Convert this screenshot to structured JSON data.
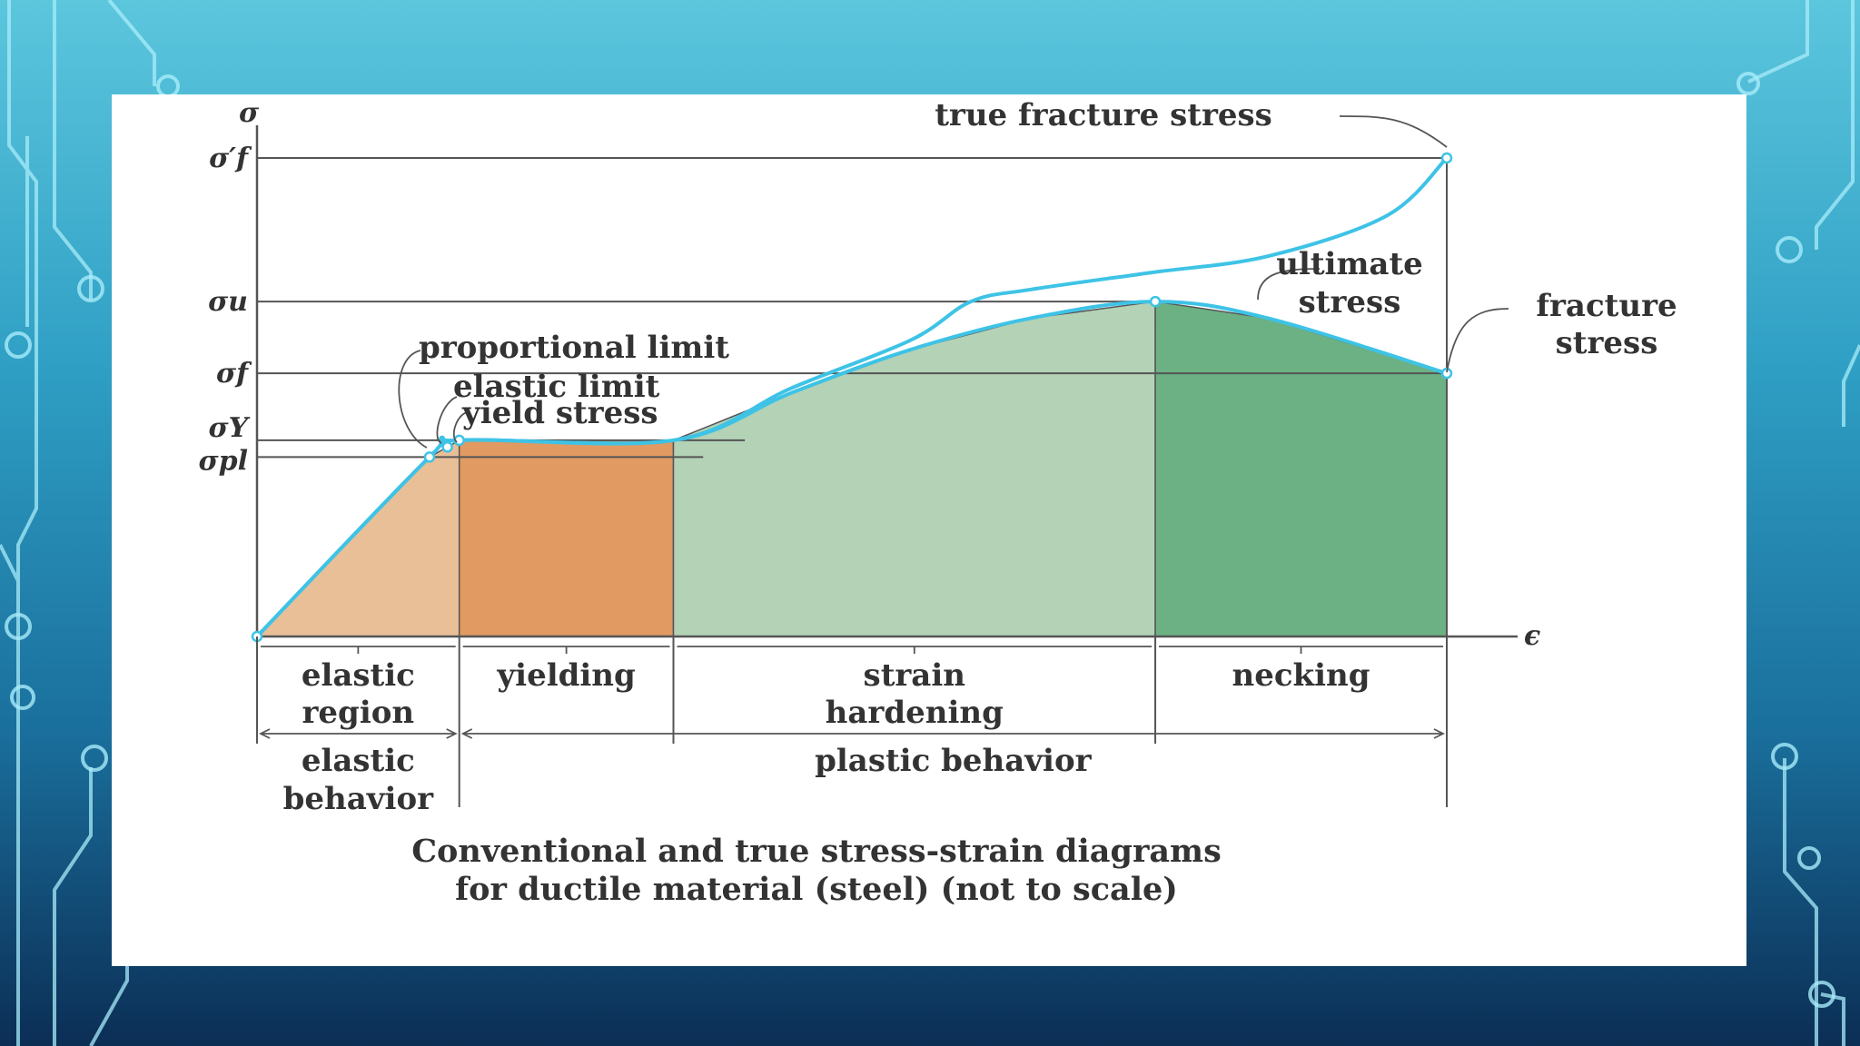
{
  "colors": {
    "elastic": "#e9bf98",
    "yielding": "#e09a62",
    "strain_hardening": "#b3d2b6",
    "necking": "#6cb184",
    "curve": "#3ec3e6",
    "axis": "#555555"
  },
  "chart_data": {
    "type": "area",
    "note_values": "conceptual, not to scale; strain in arbitrary units 0-100, stress in arbitrary units 0-100",
    "x_axis_symbol": "ϵ",
    "y_axis_symbol": "σ",
    "y_levels": [
      {
        "symbol": "σ′f",
        "value": 100
      },
      {
        "symbol": "σu",
        "value": 70
      },
      {
        "symbol": "σf",
        "value": 55
      },
      {
        "symbol": "σY",
        "value": 41
      },
      {
        "symbol": "σpl",
        "value": 37.5
      }
    ],
    "region_bounds": [
      0,
      17,
      35,
      75.5,
      100
    ],
    "regions": [
      {
        "name": "elastic region",
        "line1": "elastic",
        "line2": "region",
        "x0": 0,
        "x1": 17
      },
      {
        "name": "yielding",
        "line1": "yielding",
        "line2": "",
        "x0": 17,
        "x1": 35
      },
      {
        "name": "strain hardening",
        "line1": "strain",
        "line2": "hardening",
        "x0": 35,
        "x1": 75.5
      },
      {
        "name": "necking",
        "line1": "necking",
        "line2": "",
        "x0": 75.5,
        "x1": 100
      }
    ],
    "behaviors": [
      {
        "line1": "elastic",
        "line2": "behavior",
        "x0": 0,
        "x1": 17
      },
      {
        "line1": "plastic behavior",
        "line2": "",
        "x0": 17,
        "x1": 100
      }
    ],
    "series": [
      {
        "key": "conventional",
        "x": [
          0,
          14.5,
          17,
          35,
          45,
          55,
          65,
          75.5,
          85,
          100
        ],
        "y": [
          0,
          37.5,
          41,
          41,
          51,
          60,
          66.5,
          70,
          66.5,
          55
        ]
      },
      {
        "key": "true",
        "x": [
          0,
          14.5,
          17,
          35,
          45,
          55,
          60,
          65,
          75,
          85,
          95,
          100
        ],
        "y": [
          0,
          37.5,
          41,
          41,
          52,
          62,
          70,
          72.5,
          76,
          79.5,
          88,
          100
        ]
      }
    ],
    "annotations": [
      {
        "text": "true fracture stress"
      },
      {
        "line1": "ultimate",
        "line2": "stress"
      },
      {
        "line1": "fracture",
        "line2": "stress"
      },
      {
        "text": "proportional limit"
      },
      {
        "text": "elastic limit"
      },
      {
        "text": "yield stress"
      }
    ],
    "caption_line1": "Conventional and true stress-strain diagrams",
    "caption_line2": "for ductile material (steel) (not to scale)"
  }
}
